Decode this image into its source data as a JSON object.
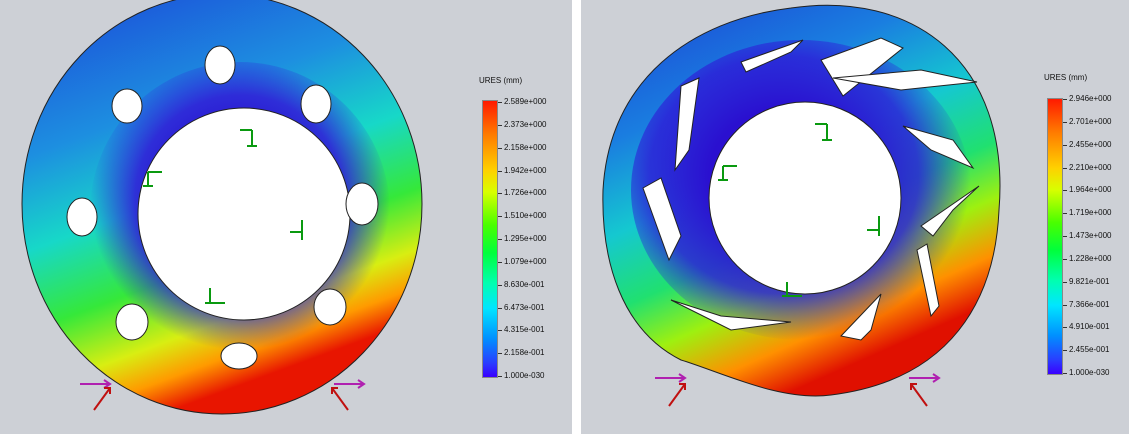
{
  "left_plot": {
    "legend_title": "URES (mm)",
    "legend_values": [
      "2.589e+000",
      "2.373e+000",
      "2.158e+000",
      "1.942e+000",
      "1.726e+000",
      "1.510e+000",
      "1.295e+000",
      "1.079e+000",
      "8.630e-001",
      "6.473e-001",
      "4.315e-001",
      "2.158e-001",
      "1.000e-030"
    ]
  },
  "right_plot": {
    "legend_title": "URES (mm)",
    "legend_values": [
      "2.946e+000",
      "2.701e+000",
      "2.455e+000",
      "2.210e+000",
      "1.964e+000",
      "1.719e+000",
      "1.473e+000",
      "1.228e+000",
      "9.821e-001",
      "7.366e-001",
      "4.910e-001",
      "2.455e-001",
      "1.000e-030"
    ]
  }
}
